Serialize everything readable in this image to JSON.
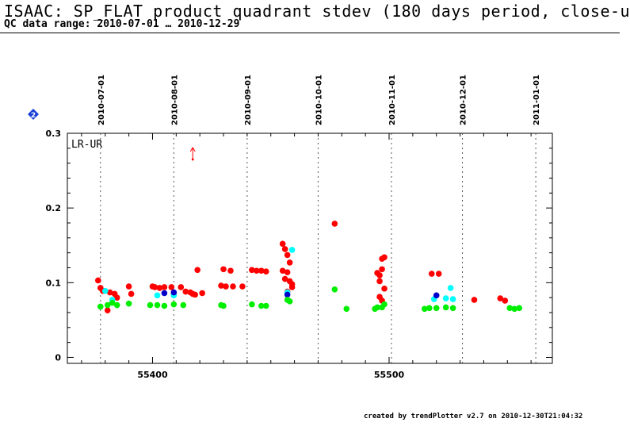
{
  "title": "ISAAC: SP_FLAT product quadrant stdev (180 days period, close-u",
  "subtitle": "QC data range: 2010-07-01 … 2010-12-29",
  "footer": "created by trendPlotter v2.7 on 2010-12-30T21:04:32",
  "badge": {
    "text": "2",
    "color": "#1a3fd6",
    "icon": "diamond-icon"
  },
  "chart_data": {
    "type": "scatter",
    "panel_label": "LR-UR",
    "xlim": [
      55364,
      55569
    ],
    "ylim": [
      -0.008,
      0.3
    ],
    "x_ticks": [
      55400,
      55500
    ],
    "x_tick_labels": [
      "55400",
      "55500"
    ],
    "y_ticks": [
      0,
      0.1,
      0.2,
      0.3
    ],
    "y_tick_labels": [
      "0",
      "0.1",
      "0.2",
      "0.3"
    ],
    "date_markers": [
      {
        "x": 55378,
        "label": "2010-07-01"
      },
      {
        "x": 55409,
        "label": "2010-08-01"
      },
      {
        "x": 55440,
        "label": "2010-09-01"
      },
      {
        "x": 55470,
        "label": "2010-10-01"
      },
      {
        "x": 55501,
        "label": "2010-11-01"
      },
      {
        "x": 55531,
        "label": "2010-12-01"
      },
      {
        "x": 55562,
        "label": "2011-01-01"
      }
    ],
    "outlier_arrow": {
      "x": 55417,
      "y": 0.265,
      "color": "#ff0000"
    },
    "grid": false,
    "series": [
      {
        "color": "#ff0000",
        "points": [
          [
            55377,
            0.103
          ],
          [
            55378,
            0.093
          ],
          [
            55379,
            0.089
          ],
          [
            55382,
            0.087
          ],
          [
            55384,
            0.085
          ],
          [
            55385,
            0.08
          ],
          [
            55381,
            0.063
          ],
          [
            55390,
            0.095
          ],
          [
            55391,
            0.085
          ],
          [
            55400,
            0.095
          ],
          [
            55401,
            0.094
          ],
          [
            55403,
            0.093
          ],
          [
            55405,
            0.094
          ],
          [
            55408,
            0.094
          ],
          [
            55409,
            0.086
          ],
          [
            55412,
            0.094
          ],
          [
            55414,
            0.088
          ],
          [
            55416,
            0.087
          ],
          [
            55417,
            0.085
          ],
          [
            55419,
            0.117
          ],
          [
            55418,
            0.084
          ],
          [
            55421,
            0.086
          ],
          [
            55429,
            0.096
          ],
          [
            55430,
            0.118
          ],
          [
            55431,
            0.095
          ],
          [
            55433,
            0.116
          ],
          [
            55434,
            0.095
          ],
          [
            55438,
            0.095
          ],
          [
            55442,
            0.117
          ],
          [
            55444,
            0.116
          ],
          [
            55446,
            0.116
          ],
          [
            55448,
            0.115
          ],
          [
            55455,
            0.152
          ],
          [
            55456,
            0.145
          ],
          [
            55457,
            0.137
          ],
          [
            55458,
            0.127
          ],
          [
            55455,
            0.116
          ],
          [
            55457,
            0.114
          ],
          [
            55456,
            0.105
          ],
          [
            55458,
            0.102
          ],
          [
            55459,
            0.094
          ],
          [
            55457,
            0.088
          ],
          [
            55459,
            0.098
          ],
          [
            55477,
            0.179
          ],
          [
            55495,
            0.113
          ],
          [
            55496,
            0.11
          ],
          [
            55497,
            0.132
          ],
          [
            55497,
            0.118
          ],
          [
            55498,
            0.134
          ],
          [
            55496,
            0.102
          ],
          [
            55498,
            0.092
          ],
          [
            55496,
            0.081
          ],
          [
            55497,
            0.076
          ],
          [
            55518,
            0.112
          ],
          [
            55521,
            0.112
          ],
          [
            55536,
            0.077
          ],
          [
            55547,
            0.079
          ],
          [
            55549,
            0.076
          ]
        ]
      },
      {
        "color": "#00ffff",
        "points": [
          [
            55380,
            0.089
          ],
          [
            55383,
            0.077
          ],
          [
            55402,
            0.083
          ],
          [
            55409,
            0.083
          ],
          [
            55459,
            0.144
          ],
          [
            55457,
            0.087
          ],
          [
            55519,
            0.078
          ],
          [
            55524,
            0.079
          ],
          [
            55526,
            0.093
          ],
          [
            55527,
            0.078
          ]
        ]
      },
      {
        "color": "#0000cc",
        "points": [
          [
            55405,
            0.086
          ],
          [
            55409,
            0.087
          ],
          [
            55457,
            0.084
          ],
          [
            55520,
            0.083
          ]
        ]
      },
      {
        "color": "#00ee00",
        "points": [
          [
            55378,
            0.068
          ],
          [
            55381,
            0.07
          ],
          [
            55383,
            0.073
          ],
          [
            55385,
            0.07
          ],
          [
            55390,
            0.072
          ],
          [
            55399,
            0.07
          ],
          [
            55402,
            0.07
          ],
          [
            55405,
            0.069
          ],
          [
            55409,
            0.071
          ],
          [
            55413,
            0.07
          ],
          [
            55429,
            0.07
          ],
          [
            55430,
            0.069
          ],
          [
            55442,
            0.071
          ],
          [
            55446,
            0.069
          ],
          [
            55448,
            0.069
          ],
          [
            55457,
            0.077
          ],
          [
            55458,
            0.075
          ],
          [
            55477,
            0.091
          ],
          [
            55482,
            0.065
          ],
          [
            55494,
            0.065
          ],
          [
            55495,
            0.067
          ],
          [
            55497,
            0.067
          ],
          [
            55498,
            0.071
          ],
          [
            55515,
            0.065
          ],
          [
            55517,
            0.066
          ],
          [
            55520,
            0.066
          ],
          [
            55524,
            0.067
          ],
          [
            55527,
            0.066
          ],
          [
            55551,
            0.066
          ],
          [
            55553,
            0.065
          ],
          [
            55555,
            0.066
          ]
        ]
      }
    ]
  }
}
